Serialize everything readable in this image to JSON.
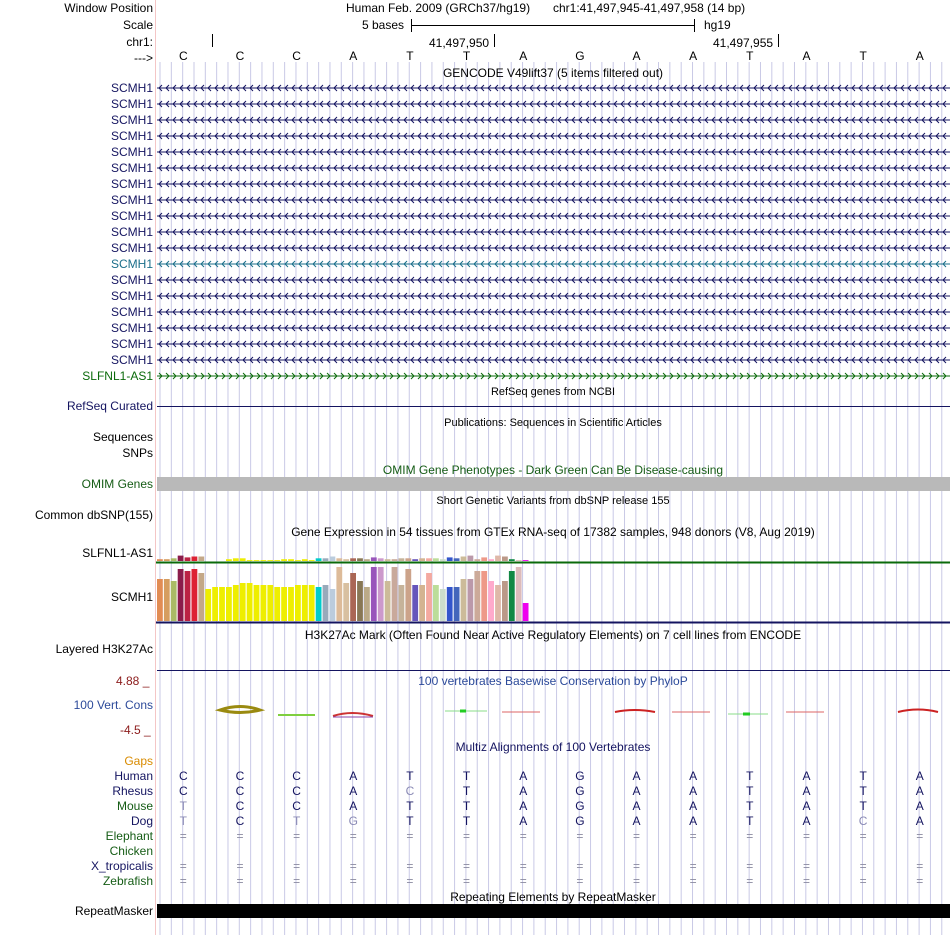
{
  "header": {
    "window_position_label": "Window Position",
    "assembly": "Human Feb. 2009 (GRCh37/hg19)",
    "region": "chr1:41,497,945-41,497,958 (14 bp)",
    "scale_label": "Scale",
    "scale_text": "5 bases",
    "scale_db": "hg19",
    "chrom_label": "chr1:",
    "coord1": "41,497,950",
    "coord2": "41,497,955",
    "strand_label": "--->",
    "bases": [
      "C",
      "C",
      "C",
      "A",
      "T",
      "T",
      "A",
      "G",
      "A",
      "A",
      "T",
      "A",
      "T",
      "A"
    ]
  },
  "gencode": {
    "title": "GENCODE V49lift37 (5 items filtered out)",
    "genes": [
      {
        "name": "SCMH1",
        "strand": "-",
        "color": "#141460"
      },
      {
        "name": "SCMH1",
        "strand": "-",
        "color": "#141460"
      },
      {
        "name": "SCMH1",
        "strand": "-",
        "color": "#141460"
      },
      {
        "name": "SCMH1",
        "strand": "-",
        "color": "#141460"
      },
      {
        "name": "SCMH1",
        "strand": "-",
        "color": "#141460"
      },
      {
        "name": "SCMH1",
        "strand": "-",
        "color": "#141460"
      },
      {
        "name": "SCMH1",
        "strand": "-",
        "color": "#141460"
      },
      {
        "name": "SCMH1",
        "strand": "-",
        "color": "#141460"
      },
      {
        "name": "SCMH1",
        "strand": "-",
        "color": "#141460"
      },
      {
        "name": "SCMH1",
        "strand": "-",
        "color": "#141460"
      },
      {
        "name": "SCMH1",
        "strand": "-",
        "color": "#141460"
      },
      {
        "name": "SCMH1",
        "strand": "-",
        "color": "#1a6e8a"
      },
      {
        "name": "SCMH1",
        "strand": "-",
        "color": "#141460"
      },
      {
        "name": "SCMH1",
        "strand": "-",
        "color": "#141460"
      },
      {
        "name": "SCMH1",
        "strand": "-",
        "color": "#141460"
      },
      {
        "name": "SCMH1",
        "strand": "-",
        "color": "#141460"
      },
      {
        "name": "SCMH1",
        "strand": "-",
        "color": "#141460"
      },
      {
        "name": "SCMH1",
        "strand": "-",
        "color": "#141460"
      },
      {
        "name": "SLFNL1-AS1",
        "strand": "+",
        "color": "#0a6a0a"
      }
    ]
  },
  "refseq": {
    "title": "RefSeq genes from NCBI",
    "label": "RefSeq Curated"
  },
  "publications": {
    "title": "Publications: Sequences in Scientific Articles",
    "label1": "Sequences",
    "label2": "SNPs"
  },
  "omim": {
    "title": "OMIM Gene Phenotypes - Dark Green Can Be Disease-causing",
    "label": "OMIM Genes"
  },
  "dbsnp": {
    "title": "Short Genetic Variants from dbSNP release 155",
    "label": "Common dbSNP(155)"
  },
  "gtex": {
    "title": "Gene Expression in 54 tissues from GTEx RNA-seq of 17382 samples, 948 donors (V8, Aug 2019)",
    "tracks": [
      {
        "label": "SLFNL1-AS1",
        "values": [
          2,
          2,
          3,
          6,
          4,
          5,
          5,
          0,
          0,
          0,
          2,
          3,
          3,
          1,
          1,
          1,
          1,
          1,
          2,
          2,
          1,
          2,
          1,
          3,
          3,
          5,
          3,
          2,
          3,
          3,
          2,
          4,
          3,
          2,
          2,
          3,
          3,
          2,
          3,
          3,
          3,
          2,
          4,
          3,
          5,
          6,
          2,
          4,
          2,
          6,
          5,
          2,
          1,
          1
        ]
      },
      {
        "label": "SCMH1",
        "values": [
          21,
          21,
          20,
          26,
          25,
          26,
          24,
          16,
          17,
          17,
          17,
          18,
          19,
          19,
          18,
          18,
          18,
          17,
          17,
          17,
          18,
          18,
          18,
          17,
          18,
          16,
          27,
          19,
          24,
          20,
          17,
          27,
          27,
          20,
          27,
          18,
          26,
          18,
          18,
          24,
          18,
          16,
          17,
          17,
          21,
          21,
          25,
          25,
          20,
          18,
          20,
          25,
          27,
          9
        ]
      }
    ],
    "colors": [
      "#e28c53",
      "#d69d5f",
      "#aabb66",
      "#8b1c4b",
      "#bb2244",
      "#dd2233",
      "#c4a888",
      "#eeee00",
      "#eeee00",
      "#eeee00",
      "#eeee00",
      "#eeee00",
      "#eeee00",
      "#eeee00",
      "#eeee00",
      "#eeee00",
      "#eeee00",
      "#eeee00",
      "#eeee00",
      "#eeee00",
      "#eeee00",
      "#eeee00",
      "#eeee00",
      "#00cccc",
      "#99aabb",
      "#bbccdd",
      "#ddbb99",
      "#d8c0a0",
      "#aa6655",
      "#887755",
      "#bbaa88",
      "#9955bb",
      "#cc99cc",
      "#ccbb99",
      "#c9a99b",
      "#c6b39a",
      "#cca38a",
      "#6655bb",
      "#d3b391",
      "#f4a9a0",
      "#bbdd99",
      "#ccddcc",
      "#3355cc",
      "#4466bb",
      "#ccbb99",
      "#bb99aa",
      "#ccaa99",
      "#ee9988",
      "#ffaacc",
      "#dfb8a9",
      "#bb9988",
      "#118844",
      "#ddbbbb",
      "#ee00ee"
    ]
  },
  "h3k27ac": {
    "title": "H3K27Ac Mark (Often Found Near Active Regulatory Elements) on 7 cell lines from ENCODE",
    "label": "Layered H3K27Ac"
  },
  "cons": {
    "title": "100 vertebrates Basewise Conservation by PhyloP",
    "label": "100 Vert. Cons",
    "ymax": "4.88 _",
    "ymin": "-4.5 _"
  },
  "multiz": {
    "title": "Multiz Alignments of 100 Vertebrates",
    "gaps_label": "Gaps",
    "species": [
      {
        "name": "Human",
        "color": "#141460",
        "seq": [
          "C",
          "C",
          "C",
          "A",
          "T",
          "T",
          "A",
          "G",
          "A",
          "A",
          "T",
          "A",
          "T",
          "A"
        ]
      },
      {
        "name": "Rhesus",
        "color": "#141460",
        "seq": [
          "C",
          "C",
          "C",
          "A",
          "C",
          "T",
          "A",
          "G",
          "A",
          "A",
          "T",
          "A",
          "T",
          "A"
        ]
      },
      {
        "name": "Mouse",
        "color": "#155c15",
        "seq": [
          "T",
          "C",
          "C",
          "A",
          "T",
          "T",
          "A",
          "G",
          "A",
          "A",
          "T",
          "A",
          "T",
          "A"
        ]
      },
      {
        "name": "Dog",
        "color": "#141460",
        "seq": [
          "T",
          "C",
          "T",
          "G",
          "T",
          "T",
          "A",
          "G",
          "A",
          "A",
          "T",
          "A",
          "C",
          "A"
        ]
      },
      {
        "name": "Elephant",
        "color": "#155c15",
        "seq": [
          "=",
          "=",
          "=",
          "=",
          "=",
          "=",
          "=",
          "=",
          "=",
          "=",
          "=",
          "=",
          "=",
          "="
        ]
      },
      {
        "name": "Chicken",
        "color": "#155c15",
        "seq": [
          "",
          "",
          "",
          "",
          "",
          "",
          "",
          "",
          "",
          "",
          "",
          "",
          "",
          ""
        ]
      },
      {
        "name": "X_tropicalis",
        "color": "#141460",
        "seq": [
          "=",
          "=",
          "=",
          "=",
          "=",
          "=",
          "=",
          "=",
          "=",
          "=",
          "=",
          "=",
          "=",
          "="
        ]
      },
      {
        "name": "Zebrafish",
        "color": "#155c15",
        "seq": [
          "=",
          "=",
          "=",
          "=",
          "=",
          "=",
          "=",
          "=",
          "=",
          "=",
          "=",
          "=",
          "=",
          "="
        ]
      }
    ]
  },
  "repeatmasker": {
    "title": "Repeating Elements by RepeatMasker",
    "label": "RepeatMasker"
  }
}
